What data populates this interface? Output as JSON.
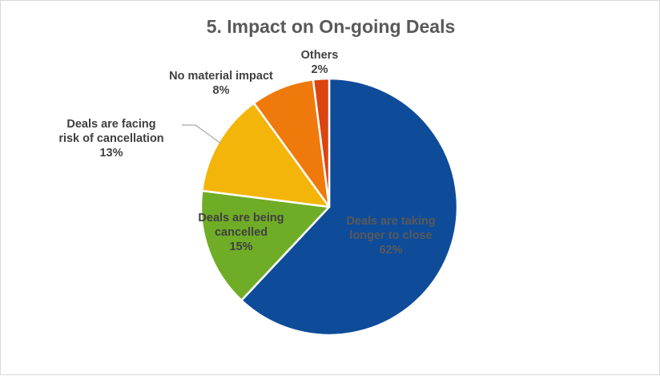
{
  "chart_data": {
    "type": "pie",
    "title": "5. Impact on On-going Deals",
    "slices": [
      {
        "label_lines": [
          "Deals are taking",
          "longer to close"
        ],
        "pct_text": "62%",
        "value": 62,
        "color": "#0E4C9A"
      },
      {
        "label_lines": [
          "Deals are being",
          "cancelled"
        ],
        "pct_text": "15%",
        "value": 15,
        "color": "#70AD27"
      },
      {
        "label_lines": [
          "Deals are facing",
          "risk of cancellation"
        ],
        "pct_text": "13%",
        "value": 13,
        "color": "#F4B50A"
      },
      {
        "label_lines": [
          "No material impact"
        ],
        "pct_text": "8%",
        "value": 8,
        "color": "#EF7A0B"
      },
      {
        "label_lines": [
          "Others"
        ],
        "pct_text": "2%",
        "value": 2,
        "color": "#DC4411"
      }
    ],
    "legend": "none"
  }
}
